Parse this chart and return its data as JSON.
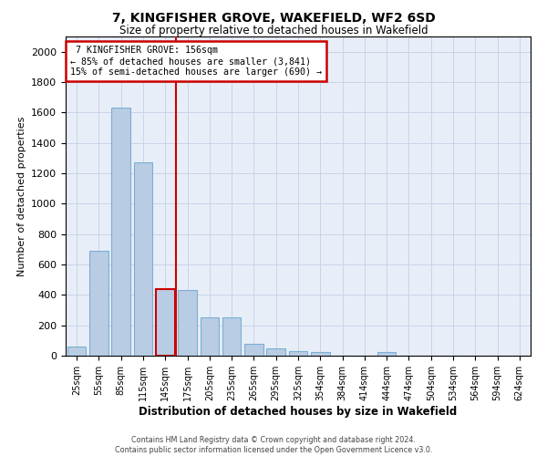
{
  "title": "7, KINGFISHER GROVE, WAKEFIELD, WF2 6SD",
  "subtitle": "Size of property relative to detached houses in Wakefield",
  "xlabel": "Distribution of detached houses by size in Wakefield",
  "ylabel": "Number of detached properties",
  "footnote1": "Contains HM Land Registry data © Crown copyright and database right 2024.",
  "footnote2": "Contains public sector information licensed under the Open Government Licence v3.0.",
  "annotation_line1": "7 KINGFISHER GROVE: 156sqm",
  "annotation_line2": "← 85% of detached houses are smaller (3,841)",
  "annotation_line3": "15% of semi-detached houses are larger (690) →",
  "categories": [
    "25sqm",
    "55sqm",
    "85sqm",
    "115sqm",
    "145sqm",
    "175sqm",
    "205sqm",
    "235sqm",
    "265sqm",
    "295sqm",
    "325sqm",
    "354sqm",
    "384sqm",
    "414sqm",
    "444sqm",
    "474sqm",
    "504sqm",
    "534sqm",
    "564sqm",
    "594sqm",
    "624sqm"
  ],
  "values": [
    60,
    690,
    1630,
    1270,
    440,
    435,
    250,
    250,
    80,
    50,
    30,
    25,
    0,
    0,
    25,
    0,
    0,
    0,
    0,
    0,
    0
  ],
  "highlighted_bar_index": 4,
  "bar_color": "#B8CCE4",
  "bar_edge_color": "#7BAFD4",
  "highlight_edge_color": "#CC0000",
  "vline_color": "#CC0000",
  "vline_x_index": 4,
  "ylim": [
    0,
    2100
  ],
  "yticks": [
    0,
    200,
    400,
    600,
    800,
    1000,
    1200,
    1400,
    1600,
    1800,
    2000
  ],
  "annotation_box_edgecolor": "#CC0000",
  "grid_color": "#C8D4E8",
  "background_color": "#E8EEF8"
}
